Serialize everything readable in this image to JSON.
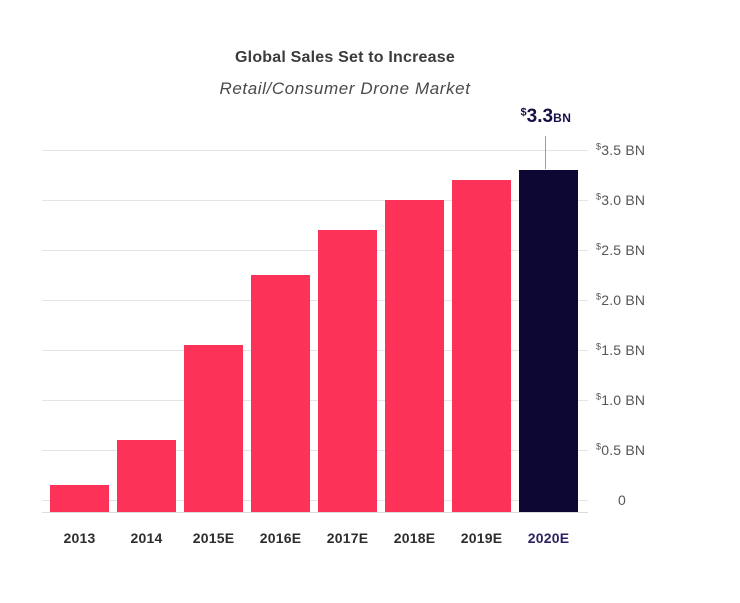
{
  "chart_data": {
    "type": "bar",
    "title": "Global Sales Set to Increase",
    "subtitle": "Retail/Consumer Drone Market",
    "categories": [
      "2013",
      "2014",
      "2015E",
      "2016E",
      "2017E",
      "2018E",
      "2019E",
      "2020E"
    ],
    "values": [
      0.15,
      0.6,
      1.55,
      2.25,
      2.7,
      3.0,
      3.2,
      3.3
    ],
    "highlight_index": 7,
    "y_ticks": [
      "$3.5 BN",
      "$3.0 BN",
      "$2.5 BN",
      "$2.0 BN",
      "$1.5 BN",
      "$1.0 BN",
      "$0.5 BN",
      "0"
    ],
    "y_tick_values": [
      3.5,
      3.0,
      2.5,
      2.0,
      1.5,
      1.0,
      0.5,
      0
    ],
    "ylim": [
      0,
      3.5
    ],
    "grid": true,
    "legend": "none",
    "y_axis_side": "right",
    "annotation": {
      "dollar": "$",
      "value": "3.3",
      "unit": "BN",
      "target": "2020E"
    },
    "colors": {
      "bar": "#fc3259",
      "highlight_bar": "#0d0734",
      "x_label": "#2d2d2d",
      "highlight_x_label": "#2b2262",
      "y_label": "#565659",
      "grid": "#e4e4e6",
      "annotation": "#151048",
      "leader_line": "#9c9ca8",
      "title": "#3b3b3b",
      "subtitle": "#4a4a4a"
    }
  }
}
